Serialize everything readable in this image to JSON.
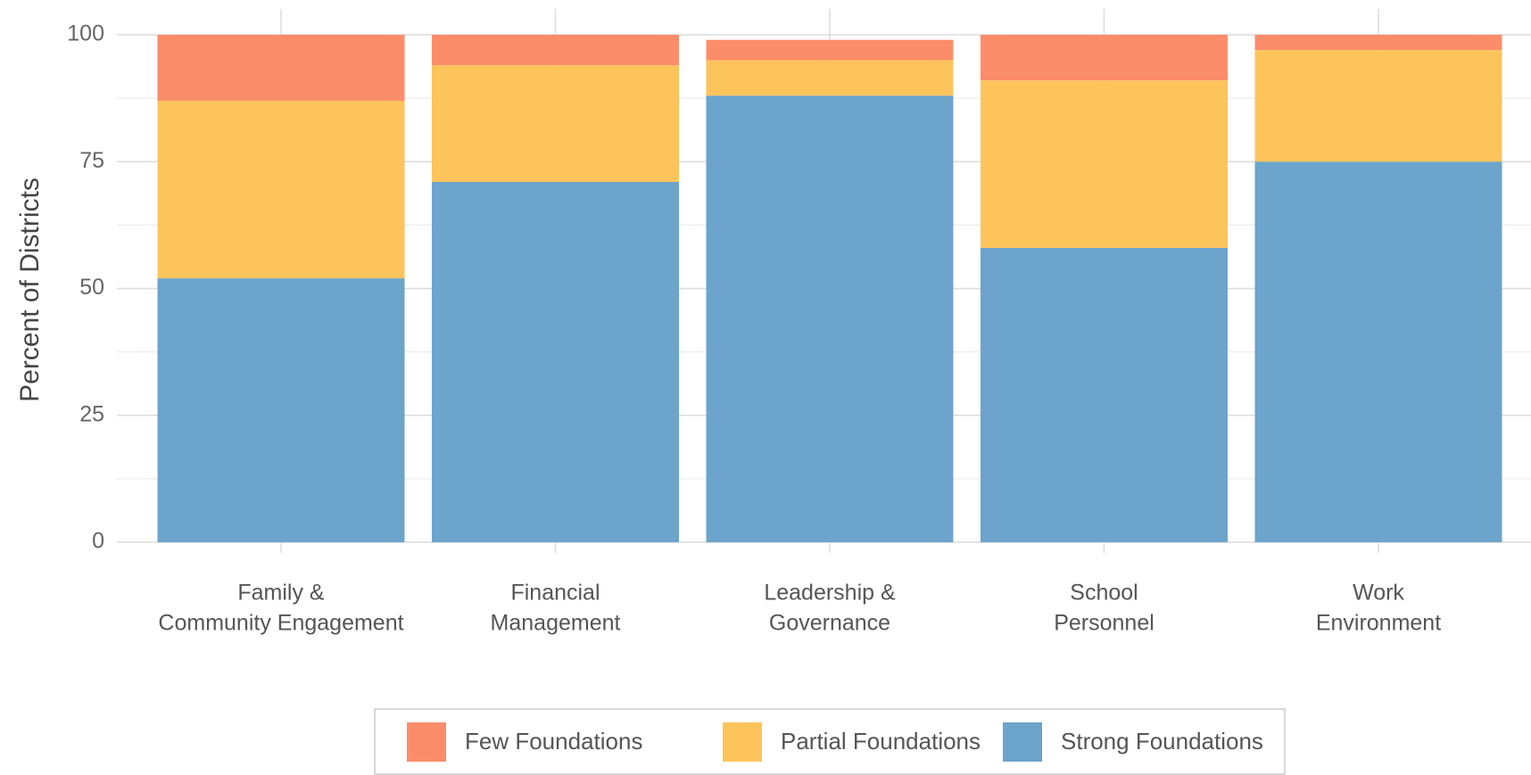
{
  "chart_data": {
    "type": "stacked_bar",
    "ylabel": "Percent of Districts",
    "categories": [
      [
        "Family &",
        "Community Engagement"
      ],
      [
        "Financial",
        "Management"
      ],
      [
        "Leadership &",
        "Governance"
      ],
      [
        "School",
        "Personnel"
      ],
      [
        "Work",
        "Environment"
      ]
    ],
    "series": [
      {
        "name": "Few Foundations",
        "color": "#fc8d6a",
        "values": [
          13,
          6,
          4,
          9,
          3
        ]
      },
      {
        "name": "Partial Foundations",
        "color": "#fdc45c",
        "values": [
          35,
          23,
          7,
          33,
          22
        ]
      },
      {
        "name": "Strong Foundations",
        "color": "#6ca4cc",
        "values": [
          52,
          71,
          88,
          58,
          75
        ]
      }
    ],
    "ylim": [
      0,
      100
    ],
    "yticks": [
      0,
      25,
      50,
      75,
      100
    ],
    "grid": true,
    "minor_grid": true,
    "legend": "bottom"
  }
}
